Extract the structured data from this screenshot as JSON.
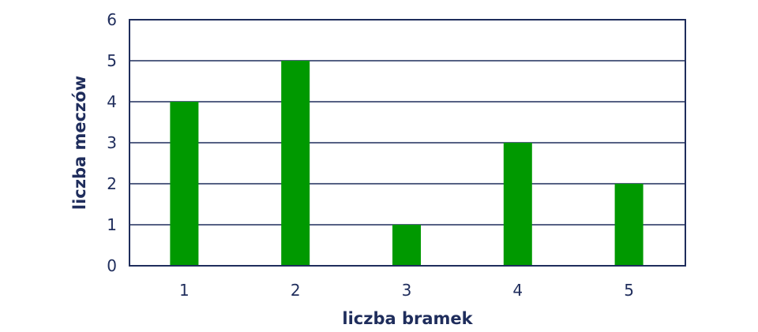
{
  "chart_data": {
    "type": "bar",
    "categories": [
      "1",
      "2",
      "3",
      "4",
      "5"
    ],
    "values": [
      4,
      5,
      1,
      3,
      2
    ],
    "title": "",
    "xlabel": "liczba bramek",
    "ylabel": "liczba meczów",
    "ylim": [
      0,
      6
    ],
    "yticks": [
      "0",
      "1",
      "2",
      "3",
      "4",
      "5",
      "6"
    ],
    "grid": true,
    "legend": "none",
    "colors": {
      "bar": "#009900",
      "axis": "#1f2d5c",
      "text": "#1f2d5c"
    }
  }
}
